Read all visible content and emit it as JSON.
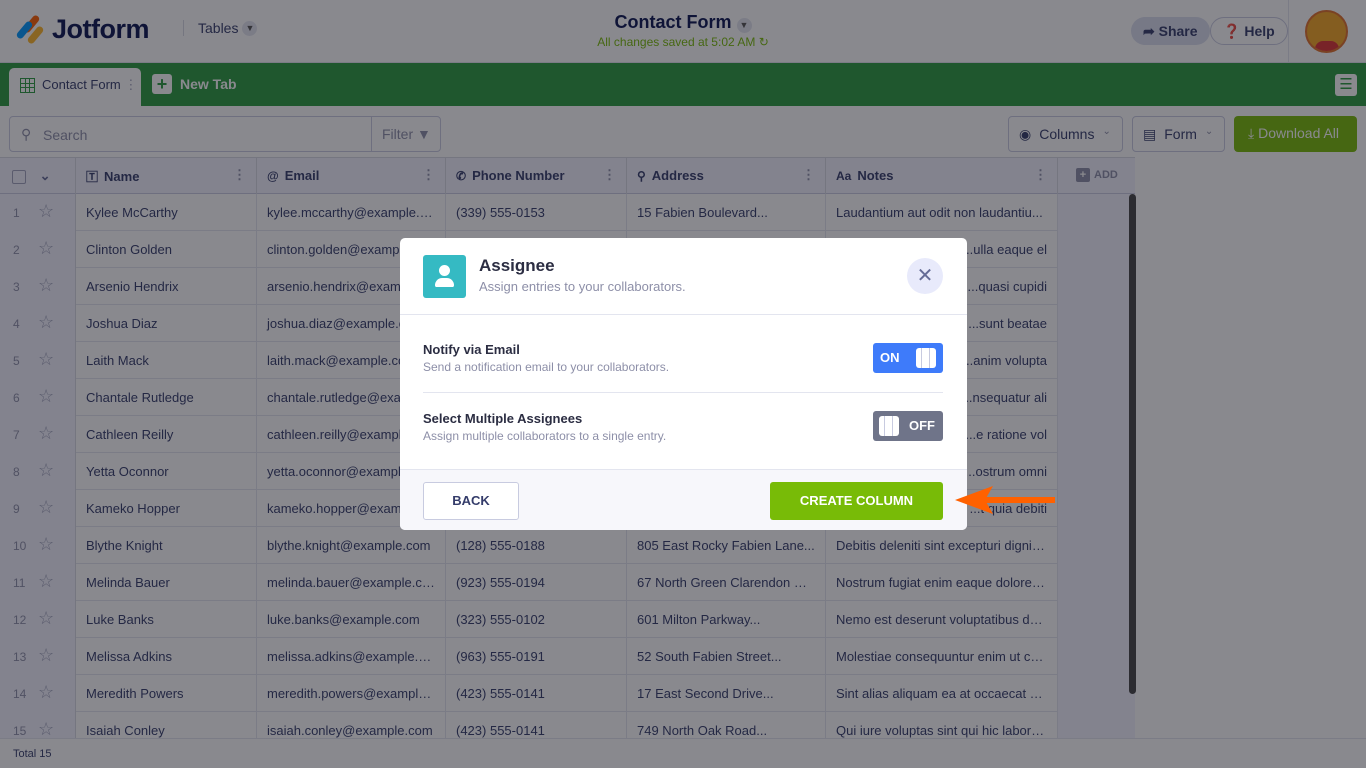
{
  "header": {
    "logo": "Jotform",
    "tables": "Tables",
    "title": "Contact Form",
    "saved": "All changes saved at 5:02 AM",
    "share": "Share",
    "help": "Help"
  },
  "tabs": {
    "active": "Contact Form",
    "new_tab": "New Tab"
  },
  "toolbar": {
    "search_placeholder": "Search",
    "filter": "Filter",
    "columns": "Columns",
    "form": "Form",
    "download": "Download All"
  },
  "columns": [
    {
      "label": "Name",
      "icon": "text-icon"
    },
    {
      "label": "Email",
      "icon": "at-icon"
    },
    {
      "label": "Phone Number",
      "icon": "phone-icon"
    },
    {
      "label": "Address",
      "icon": "pin-icon"
    },
    {
      "label": "Notes",
      "icon": "font-icon"
    }
  ],
  "add_column": "ADD",
  "rows": [
    {
      "n": "1",
      "name": "Kylee McCarthy",
      "email": "kylee.mccarthy@example.c...",
      "phone": "(339) 555-0153",
      "address": "15 Fabien Boulevard...",
      "notes": "Laudantium aut odit non laudantiu..."
    },
    {
      "n": "2",
      "name": "Clinton Golden",
      "email": "clinton.golden@exampl",
      "phone": "",
      "address": "",
      "notes": "ulla eaque el..."
    },
    {
      "n": "3",
      "name": "Arsenio Hendrix",
      "email": "arsenio.hendrix@examp",
      "phone": "",
      "address": "",
      "notes": "quasi cupidi..."
    },
    {
      "n": "4",
      "name": "Joshua Diaz",
      "email": "joshua.diaz@example.co",
      "phone": "",
      "address": "",
      "notes": "sunt beatae..."
    },
    {
      "n": "5",
      "name": "Laith Mack",
      "email": "laith.mack@example.co",
      "phone": "",
      "address": "",
      "notes": "anim volupta..."
    },
    {
      "n": "6",
      "name": "Chantale Rutledge",
      "email": "chantale.rutledge@exam",
      "phone": "",
      "address": "",
      "notes": "nsequatur ali..."
    },
    {
      "n": "7",
      "name": "Cathleen Reilly",
      "email": "cathleen.reilly@example",
      "phone": "",
      "address": "",
      "notes": "e ratione vol..."
    },
    {
      "n": "8",
      "name": "Yetta Oconnor",
      "email": "yetta.oconnor@example",
      "phone": "",
      "address": "",
      "notes": "ostrum omni..."
    },
    {
      "n": "9",
      "name": "Kameko Hopper",
      "email": "kameko.hopper@examp",
      "phone": "",
      "address": "",
      "notes": "t quia debiti..."
    },
    {
      "n": "10",
      "name": "Blythe Knight",
      "email": "blythe.knight@example.com",
      "phone": "(128) 555-0188",
      "address": "805 East Rocky Fabien Lane...",
      "notes": "Debitis deleniti sint excepturi dignis..."
    },
    {
      "n": "11",
      "name": "Melinda Bauer",
      "email": "melinda.bauer@example.com",
      "phone": "(923) 555-0194",
      "address": "67 North Green Clarendon Ex...",
      "notes": "Nostrum fugiat enim eaque dolores..."
    },
    {
      "n": "12",
      "name": "Luke Banks",
      "email": "luke.banks@example.com",
      "phone": "(323) 555-0102",
      "address": "601 Milton Parkway...",
      "notes": "Nemo est deserunt voluptatibus de..."
    },
    {
      "n": "13",
      "name": "Melissa Adkins",
      "email": "melissa.adkins@example.com",
      "phone": "(963) 555-0191",
      "address": "52 South Fabien Street...",
      "notes": "Molestiae consequuntur enim ut cu..."
    },
    {
      "n": "14",
      "name": "Meredith Powers",
      "email": "meredith.powers@example....",
      "phone": "(423) 555-0141",
      "address": "17 East Second Drive...",
      "notes": "Sint alias aliquam ea at occaecat no..."
    },
    {
      "n": "15",
      "name": "Isaiah Conley",
      "email": "isaiah.conley@example.com",
      "phone": "(423) 555-0141",
      "address": "749 North Oak Road...",
      "notes": "Qui iure voluptas sint qui hic laboru..."
    }
  ],
  "footer": {
    "total": "Total 15"
  },
  "modal": {
    "title": "Assignee",
    "subtitle": "Assign entries to your collaborators.",
    "options": [
      {
        "label": "Notify via Email",
        "desc": "Send a notification email to your collaborators.",
        "state": "ON",
        "enabled": true
      },
      {
        "label": "Select Multiple Assignees",
        "desc": "Assign multiple collaborators to a single entry.",
        "state": "OFF",
        "enabled": false
      }
    ],
    "back": "BACK",
    "create": "CREATE COLUMN"
  },
  "colors": {
    "brand_green": "#2a9a3e",
    "accent_green": "#78bb07",
    "toggle_on": "#3e7bfa",
    "toggle_off": "#6f7489",
    "assignee_icon": "#35bac3",
    "annotation_arrow": "#ff6100"
  }
}
